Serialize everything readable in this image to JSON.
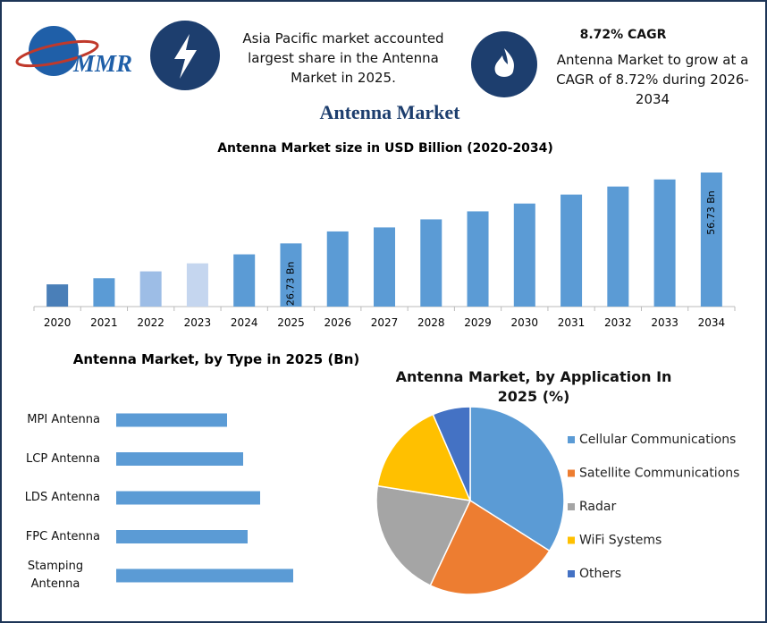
{
  "header": {
    "logo": "MMR",
    "note": "Asia Pacific market accounted largest share in the Antenna Market in 2025.",
    "cagr_title": "8.72% CAGR",
    "cagr_text": "Antenna Market to grow at a CAGR of 8.72% during 2026-2034"
  },
  "title": "Antenna Market",
  "chart_data": [
    {
      "type": "bar",
      "title": "Antenna Market size in USD Billion (2020-2034)",
      "categories": [
        "2020",
        "2021",
        "2022",
        "2023",
        "2024",
        "2025",
        "2026",
        "2027",
        "2028",
        "2029",
        "2030",
        "2031",
        "2032",
        "2033",
        "2034"
      ],
      "values": [
        9.4,
        12.0,
        14.9,
        18.3,
        22.1,
        26.73,
        31.8,
        33.5,
        36.9,
        40.3,
        43.6,
        47.4,
        50.8,
        53.8,
        56.73
      ],
      "value_labels": [
        null,
        null,
        null,
        null,
        null,
        "26.73 Bn",
        null,
        null,
        null,
        null,
        null,
        null,
        null,
        null,
        "56.73 Bn"
      ],
      "colors": [
        "#4a7fb8",
        "#5b9bd5",
        "#9dbde6",
        "#c5d6ef",
        "#5b9bd5",
        "#5b9bd5",
        "#5b9bd5",
        "#5b9bd5",
        "#5b9bd5",
        "#5b9bd5",
        "#5b9bd5",
        "#5b9bd5",
        "#5b9bd5",
        "#5b9bd5",
        "#5b9bd5"
      ]
    },
    {
      "type": "hbar",
      "title": "Antenna Market, by Type in 2025 (Bn)",
      "categories": [
        "MPI Antenna",
        "LCP Antenna",
        "LDS Antenna",
        "FPC Antenna",
        "Stamping Antenna"
      ],
      "values": [
        2.48,
        2.84,
        3.22,
        2.94,
        3.96
      ],
      "color": "#5b9bd5"
    },
    {
      "type": "pie",
      "title": "Antenna Market, by Application In 2025 (%)",
      "categories": [
        "Cellular Communications",
        "Satellite Communications",
        "Radar",
        "WiFi Systems",
        "Others"
      ],
      "values": [
        34,
        23,
        20.5,
        16,
        6.5
      ],
      "colors": [
        "#5b9bd5",
        "#ed7d31",
        "#a5a5a5",
        "#ffc000",
        "#4472c4"
      ]
    }
  ]
}
